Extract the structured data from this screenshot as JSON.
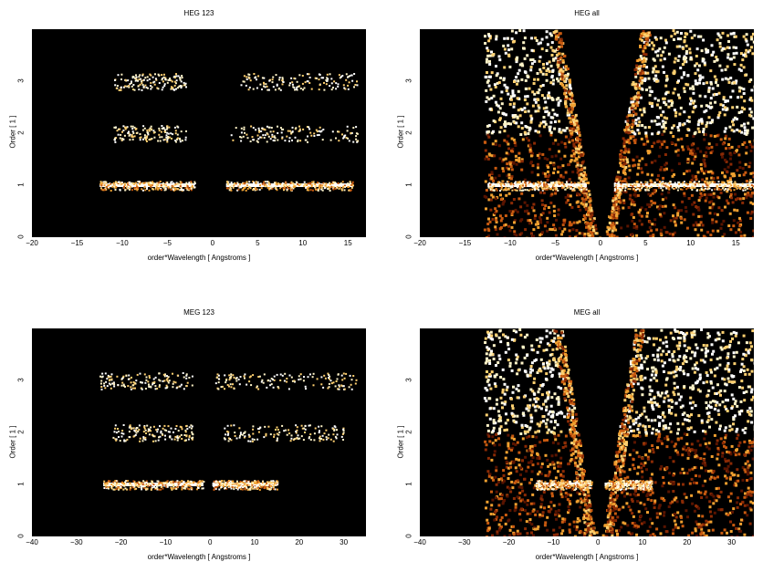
{
  "chart_data": [
    {
      "type": "heatmap",
      "title": "HEG 123",
      "xlabel": "order*Wavelength [ Angstroms ]",
      "ylabel": "Order [ 1 ]",
      "xlim": [
        -20,
        17
      ],
      "ylim": [
        0,
        4
      ],
      "xticks": [
        -20,
        -15,
        -10,
        -5,
        0,
        5,
        10,
        15
      ],
      "xtick_labels": [
        "−20",
        "−15",
        "−10",
        "−5",
        "0",
        "5",
        "10",
        "15"
      ],
      "yticks": [
        0,
        1,
        2,
        3
      ],
      "ytick_labels": [
        "0",
        "1",
        "2",
        "3"
      ],
      "bands": [
        {
          "order": 1,
          "x_ranges": [
            [
              -12.5,
              -2.0
            ],
            [
              1.5,
              15.5
            ]
          ],
          "intensity": "high"
        },
        {
          "order": 2,
          "x_ranges": [
            [
              -11.0,
              -3.0
            ],
            [
              2.0,
              16.0
            ]
          ],
          "intensity": "low"
        },
        {
          "order": 3,
          "x_ranges": [
            [
              -11.0,
              -3.0
            ],
            [
              3.0,
              16.0
            ]
          ],
          "intensity": "low"
        }
      ]
    },
    {
      "type": "heatmap",
      "title": "HEG all",
      "xlabel": "order*Wavelength [ Angstroms ]",
      "ylabel": "Order [ 1 ]",
      "xlim": [
        -20,
        17
      ],
      "ylim": [
        0,
        4
      ],
      "xticks": [
        -20,
        -15,
        -10,
        -5,
        0,
        5,
        10,
        15
      ],
      "xtick_labels": [
        "−20",
        "−15",
        "−10",
        "−5",
        "0",
        "5",
        "10",
        "15"
      ],
      "yticks": [
        0,
        1,
        2,
        3
      ],
      "ytick_labels": [
        "0",
        "1",
        "2",
        "3"
      ],
      "bands": [
        {
          "order": 1,
          "x_ranges": [
            [
              -12.5,
              -1.5
            ],
            [
              1.5,
              17.0
            ]
          ],
          "intensity": "high"
        }
      ]
    },
    {
      "type": "heatmap",
      "title": "MEG 123",
      "xlabel": "order*Wavelength [ Angstroms ]",
      "ylabel": "Order [ 1 ]",
      "xlim": [
        -40,
        35
      ],
      "ylim": [
        0,
        4
      ],
      "xticks": [
        -40,
        -30,
        -20,
        -10,
        0,
        10,
        20,
        30
      ],
      "xtick_labels": [
        "−40",
        "−30",
        "−20",
        "−10",
        "0",
        "10",
        "20",
        "30"
      ],
      "yticks": [
        0,
        1,
        2,
        3
      ],
      "ytick_labels": [
        "0",
        "1",
        "2",
        "3"
      ],
      "bands": [
        {
          "order": 1,
          "x_ranges": [
            [
              -24.0,
              -1.5
            ],
            [
              0.5,
              15.0
            ]
          ],
          "intensity": "high"
        },
        {
          "order": 2,
          "x_ranges": [
            [
              -22.0,
              -4.0
            ],
            [
              3.0,
              30.0
            ]
          ],
          "intensity": "low"
        },
        {
          "order": 3,
          "x_ranges": [
            [
              -25.0,
              -4.0
            ],
            [
              1.0,
              33.0
            ]
          ],
          "intensity": "low"
        }
      ]
    },
    {
      "type": "heatmap",
      "title": "MEG all",
      "xlabel": "order*Wavelength [ Angstroms ]",
      "ylabel": "Order [ 1 ]",
      "xlim": [
        -40,
        35
      ],
      "ylim": [
        0,
        4
      ],
      "xticks": [
        -40,
        -30,
        -20,
        -10,
        0,
        10,
        20,
        30
      ],
      "xtick_labels": [
        "−40",
        "−30",
        "−20",
        "−10",
        "0",
        "10",
        "20",
        "30"
      ],
      "yticks": [
        0,
        1,
        2,
        3
      ],
      "ytick_labels": [
        "0",
        "1",
        "2",
        "3"
      ],
      "bands": [
        {
          "order": 1,
          "x_ranges": [
            [
              -14.0,
              -1.5
            ],
            [
              1.5,
              12.0
            ]
          ],
          "intensity": "high"
        }
      ]
    }
  ]
}
